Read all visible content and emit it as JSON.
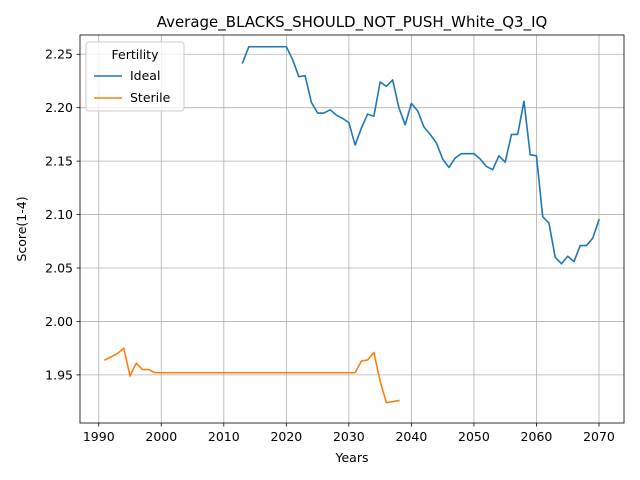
{
  "chart_data": {
    "type": "line",
    "title": "Average_BLACKS_SHOULD_NOT_PUSH_White_Q3_IQ",
    "xlabel": "Years",
    "ylabel": "Score(1-4)",
    "xlim": [
      1987,
      2074
    ],
    "ylim": [
      1.905,
      2.268
    ],
    "xticks": [
      1990,
      2000,
      2010,
      2020,
      2030,
      2040,
      2050,
      2060,
      2070
    ],
    "yticks": [
      1.95,
      2.0,
      2.05,
      2.1,
      2.15,
      2.2,
      2.25
    ],
    "grid": true,
    "legend": {
      "title": "Fertility",
      "position": "top-left"
    },
    "series": [
      {
        "name": "Ideal",
        "color": "#1f77b4",
        "x": [
          2013,
          2014,
          2015,
          2016,
          2017,
          2018,
          2019,
          2020,
          2021,
          2022,
          2023,
          2024,
          2025,
          2026,
          2027,
          2028,
          2029,
          2030,
          2031,
          2032,
          2033,
          2034,
          2035,
          2036,
          2037,
          2038,
          2039,
          2040,
          2041,
          2042,
          2043,
          2044,
          2045,
          2046,
          2047,
          2048,
          2049,
          2050,
          2051,
          2052,
          2053,
          2054,
          2055,
          2056,
          2057,
          2058,
          2059,
          2060,
          2061,
          2062,
          2063,
          2064,
          2065,
          2066,
          2067,
          2068,
          2069,
          2070
        ],
        "values": [
          2.242,
          2.257,
          2.257,
          2.257,
          2.257,
          2.257,
          2.257,
          2.257,
          2.245,
          2.229,
          2.23,
          2.205,
          2.195,
          2.195,
          2.198,
          2.193,
          2.19,
          2.186,
          2.165,
          2.181,
          2.194,
          2.192,
          2.224,
          2.22,
          2.226,
          2.2,
          2.184,
          2.204,
          2.197,
          2.182,
          2.175,
          2.167,
          2.152,
          2.144,
          2.153,
          2.157,
          2.157,
          2.157,
          2.152,
          2.145,
          2.142,
          2.155,
          2.149,
          2.175,
          2.175,
          2.206,
          2.156,
          2.155,
          2.098,
          2.092,
          2.06,
          2.054,
          2.061,
          2.056,
          2.071,
          2.071,
          2.078,
          2.095
        ]
      },
      {
        "name": "Sterile",
        "color": "#ff7f0e",
        "x": [
          1991,
          1992,
          1993,
          1994,
          1995,
          1996,
          1997,
          1998,
          1999,
          2000,
          2001,
          2002,
          2003,
          2004,
          2005,
          2006,
          2007,
          2008,
          2009,
          2010,
          2011,
          2012,
          2013,
          2014,
          2015,
          2016,
          2017,
          2018,
          2019,
          2020,
          2021,
          2022,
          2023,
          2024,
          2025,
          2026,
          2027,
          2028,
          2029,
          2030,
          2031,
          2032,
          2033,
          2034,
          2035,
          2036,
          2037,
          2038
        ],
        "values": [
          1.964,
          1.967,
          1.97,
          1.975,
          1.949,
          1.961,
          1.955,
          1.955,
          1.952,
          1.952,
          1.952,
          1.952,
          1.952,
          1.952,
          1.952,
          1.952,
          1.952,
          1.952,
          1.952,
          1.952,
          1.952,
          1.952,
          1.952,
          1.952,
          1.952,
          1.952,
          1.952,
          1.952,
          1.952,
          1.952,
          1.952,
          1.952,
          1.952,
          1.952,
          1.952,
          1.952,
          1.952,
          1.952,
          1.952,
          1.952,
          1.952,
          1.963,
          1.964,
          1.971,
          1.944,
          1.924,
          1.925,
          1.926
        ]
      }
    ]
  }
}
